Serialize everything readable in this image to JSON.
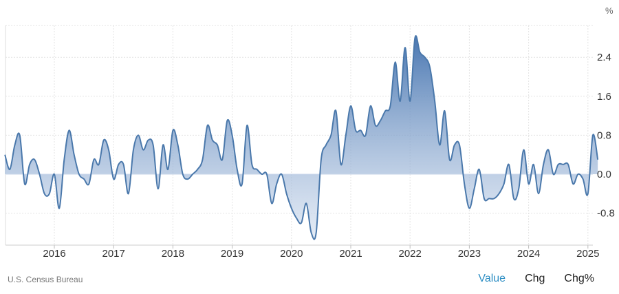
{
  "source": "U.S. Census Bureau",
  "tabs": [
    {
      "label": "Value",
      "active": true
    },
    {
      "label": "Chg",
      "active": false
    },
    {
      "label": "Chg%",
      "active": false
    }
  ],
  "colors": {
    "line": "#4a78ab",
    "fill_top": "#3f6fad",
    "fill_bottom": "#cfdcee",
    "active_tab": "#2f8fc4",
    "grid": "#e3e3e3"
  },
  "chart_data": {
    "type": "area",
    "unit_label": "%",
    "title": "",
    "xlabel": "",
    "ylabel": "",
    "x_ticks": [
      "2016",
      "2017",
      "2018",
      "2019",
      "2020",
      "2021",
      "2022",
      "2023",
      "2024",
      "2025"
    ],
    "y_ticks": [
      2.4,
      1.6,
      0.8,
      0.0,
      -0.8
    ],
    "xlim": [
      "2015-03",
      "2025-02"
    ],
    "ylim": [
      -1.5,
      3.0
    ],
    "grid": true,
    "series": [
      {
        "points": [
          [
            "2015-03",
            0.4
          ],
          [
            "2015-04",
            0.1
          ],
          [
            "2015-05",
            0.6
          ],
          [
            "2015-06",
            0.8
          ],
          [
            "2015-07",
            -0.2
          ],
          [
            "2015-08",
            0.2
          ],
          [
            "2015-09",
            0.3
          ],
          [
            "2015-10",
            0.0
          ],
          [
            "2015-11",
            -0.4
          ],
          [
            "2015-12",
            -0.4
          ],
          [
            "2016-01",
            0.0
          ],
          [
            "2016-02",
            -0.7
          ],
          [
            "2016-03",
            0.3
          ],
          [
            "2016-04",
            0.9
          ],
          [
            "2016-05",
            0.4
          ],
          [
            "2016-06",
            0.0
          ],
          [
            "2016-07",
            -0.1
          ],
          [
            "2016-08",
            -0.2
          ],
          [
            "2016-09",
            0.3
          ],
          [
            "2016-10",
            0.2
          ],
          [
            "2016-11",
            0.7
          ],
          [
            "2016-12",
            0.5
          ],
          [
            "2017-01",
            -0.1
          ],
          [
            "2017-02",
            0.2
          ],
          [
            "2017-03",
            0.2
          ],
          [
            "2017-04",
            -0.4
          ],
          [
            "2017-05",
            0.5
          ],
          [
            "2017-06",
            0.8
          ],
          [
            "2017-07",
            0.5
          ],
          [
            "2017-08",
            0.7
          ],
          [
            "2017-09",
            0.6
          ],
          [
            "2017-10",
            -0.3
          ],
          [
            "2017-11",
            0.6
          ],
          [
            "2017-12",
            0.1
          ],
          [
            "2018-01",
            0.9
          ],
          [
            "2018-02",
            0.6
          ],
          [
            "2018-03",
            0.0
          ],
          [
            "2018-04",
            -0.1
          ],
          [
            "2018-05",
            0.0
          ],
          [
            "2018-06",
            0.1
          ],
          [
            "2018-07",
            0.3
          ],
          [
            "2018-08",
            1.0
          ],
          [
            "2018-09",
            0.7
          ],
          [
            "2018-10",
            0.6
          ],
          [
            "2018-11",
            0.3
          ],
          [
            "2018-12",
            1.1
          ],
          [
            "2019-01",
            0.8
          ],
          [
            "2019-02",
            0.1
          ],
          [
            "2019-03",
            -0.2
          ],
          [
            "2019-04",
            1.0
          ],
          [
            "2019-05",
            0.2
          ],
          [
            "2019-06",
            0.1
          ],
          [
            "2019-07",
            0.0
          ],
          [
            "2019-08",
            0.0
          ],
          [
            "2019-09",
            -0.6
          ],
          [
            "2019-10",
            -0.2
          ],
          [
            "2019-11",
            0.0
          ],
          [
            "2019-12",
            -0.4
          ],
          [
            "2020-01",
            -0.7
          ],
          [
            "2020-02",
            -0.9
          ],
          [
            "2020-03",
            -1.0
          ],
          [
            "2020-04",
            -0.6
          ],
          [
            "2020-05",
            -1.2
          ],
          [
            "2020-06",
            -1.2
          ],
          [
            "2020-07",
            0.3
          ],
          [
            "2020-08",
            0.6
          ],
          [
            "2020-09",
            0.8
          ],
          [
            "2020-10",
            1.3
          ],
          [
            "2020-11",
            0.2
          ],
          [
            "2020-12",
            0.8
          ],
          [
            "2021-01",
            1.4
          ],
          [
            "2021-02",
            0.9
          ],
          [
            "2021-03",
            0.9
          ],
          [
            "2021-04",
            0.8
          ],
          [
            "2021-05",
            1.4
          ],
          [
            "2021-06",
            1.0
          ],
          [
            "2021-07",
            1.1
          ],
          [
            "2021-08",
            1.3
          ],
          [
            "2021-09",
            1.4
          ],
          [
            "2021-10",
            2.3
          ],
          [
            "2021-11",
            1.5
          ],
          [
            "2021-12",
            2.6
          ],
          [
            "2022-01",
            1.5
          ],
          [
            "2022-02",
            2.8
          ],
          [
            "2022-03",
            2.5
          ],
          [
            "2022-04",
            2.4
          ],
          [
            "2022-05",
            2.2
          ],
          [
            "2022-06",
            1.5
          ],
          [
            "2022-07",
            0.6
          ],
          [
            "2022-08",
            1.3
          ],
          [
            "2022-09",
            0.3
          ],
          [
            "2022-10",
            0.6
          ],
          [
            "2022-11",
            0.6
          ],
          [
            "2022-12",
            -0.2
          ],
          [
            "2023-01",
            -0.7
          ],
          [
            "2023-02",
            -0.3
          ],
          [
            "2023-03",
            0.1
          ],
          [
            "2023-04",
            -0.5
          ],
          [
            "2023-05",
            -0.5
          ],
          [
            "2023-06",
            -0.5
          ],
          [
            "2023-07",
            -0.4
          ],
          [
            "2023-08",
            -0.2
          ],
          [
            "2023-09",
            0.2
          ],
          [
            "2023-10",
            -0.5
          ],
          [
            "2023-11",
            -0.3
          ],
          [
            "2023-12",
            0.5
          ],
          [
            "2024-01",
            -0.2
          ],
          [
            "2024-02",
            0.2
          ],
          [
            "2024-03",
            -0.4
          ],
          [
            "2024-04",
            0.2
          ],
          [
            "2024-05",
            0.5
          ],
          [
            "2024-06",
            0.0
          ],
          [
            "2024-07",
            0.2
          ],
          [
            "2024-08",
            0.2
          ],
          [
            "2024-09",
            0.2
          ],
          [
            "2024-10",
            -0.2
          ],
          [
            "2024-11",
            0.0
          ],
          [
            "2024-12",
            -0.1
          ],
          [
            "2025-01",
            -0.4
          ],
          [
            "2025-02",
            0.8
          ],
          [
            "2025-03",
            0.3
          ]
        ]
      }
    ]
  }
}
